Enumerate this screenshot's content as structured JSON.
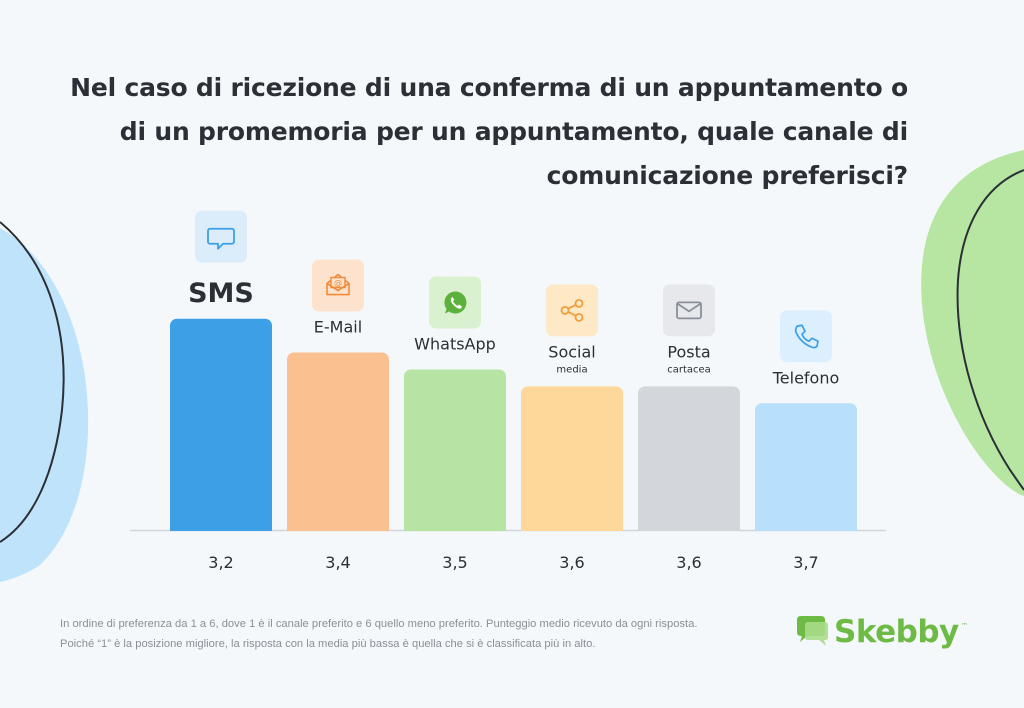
{
  "title": "Nel caso di ricezione di una conferma di un appuntamento o di un promemoria per un appuntamento, quale canale di comunicazione preferisci?",
  "colors": {
    "background": "#f5f8fb",
    "blob_left": "#bfe3fb",
    "blob_right": "#b6e6a2",
    "axis": "#cfd5db",
    "brand": "#6dbb45"
  },
  "chart_data": {
    "type": "bar",
    "title": "Nel caso di ricezione di una conferma di un appuntamento o di un promemoria per un appuntamento, quale canale di comunicazione preferisci?",
    "categories": [
      "SMS",
      "E-Mail",
      "WhatsApp",
      "Social media",
      "Posta cartacea",
      "Telefono"
    ],
    "values": [
      3.2,
      3.4,
      3.5,
      3.6,
      3.6,
      3.7
    ],
    "value_labels": [
      "3,2",
      "3,4",
      "3,5",
      "3,6",
      "3,6",
      "3,7"
    ],
    "bars": [
      {
        "label": "SMS",
        "sublabel": "",
        "value": 3.2,
        "value_label": "3,2",
        "color": "#3d9fe5",
        "icon": "chat-bubble-icon",
        "icon_color": "#3d9fe5",
        "icon_bg": "#dbedfb"
      },
      {
        "label": "E-Mail",
        "sublabel": "",
        "value": 3.4,
        "value_label": "3,4",
        "color": "#fbc08f",
        "icon": "email-envelope-icon",
        "icon_color": "#f08a3a",
        "icon_bg": "#fde3cd"
      },
      {
        "label": "WhatsApp",
        "sublabel": "",
        "value": 3.5,
        "value_label": "3,5",
        "color": "#b7e3a4",
        "icon": "whatsapp-icon",
        "icon_color": "#5cb13c",
        "icon_bg": "#d9f1cf"
      },
      {
        "label": "Social",
        "sublabel": "media",
        "value": 3.6,
        "value_label": "3,6",
        "color": "#fdd89a",
        "icon": "share-icon",
        "icon_color": "#f29d3a",
        "icon_bg": "#fde9c6"
      },
      {
        "label": "Posta",
        "sublabel": "cartacea",
        "value": 3.6,
        "value_label": "3,6",
        "color": "#d3d6db",
        "icon": "envelope-icon",
        "icon_color": "#8a9099",
        "icon_bg": "#e6e8eb"
      },
      {
        "label": "Telefono",
        "sublabel": "",
        "value": 3.7,
        "value_label": "3,7",
        "color": "#b8dffc",
        "icon": "phone-icon",
        "icon_color": "#3d9fe5",
        "icon_bg": "#dcefff"
      }
    ],
    "xlabel": "",
    "ylabel": "",
    "grid": false,
    "legend": "none"
  },
  "footnote": "In ordine di preferenza da 1 a 6, dove 1 è il canale preferito e 6 quello meno preferito. Punteggio medio ricevuto da ogni risposta. Poiché “1” è la posizione migliore, la risposta con la media più bassa è quella che si è classificata più in alto.",
  "brand": {
    "name": "Skebby",
    "trademark": "™"
  }
}
